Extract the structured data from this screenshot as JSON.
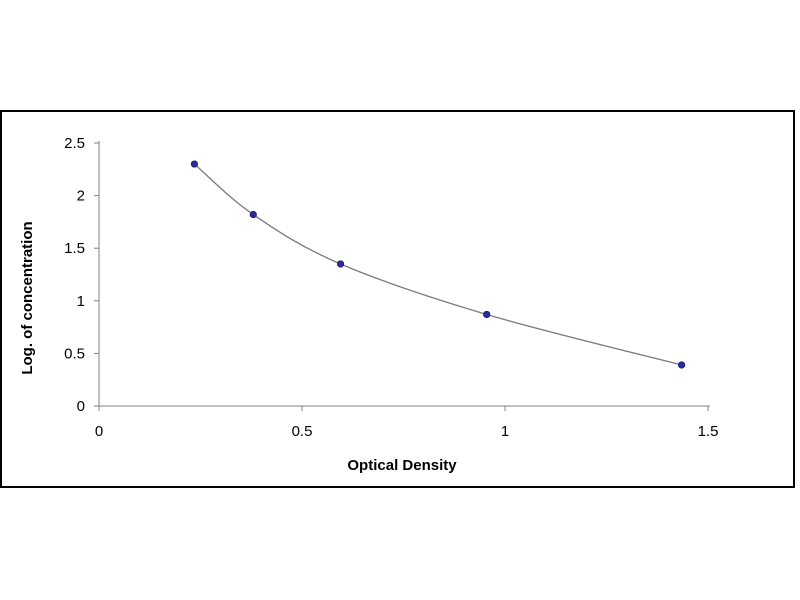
{
  "chart_data": {
    "type": "scatter",
    "title": "",
    "xlabel": "Optical Density",
    "ylabel": "Log. of concentration",
    "xlim": [
      0,
      1.5
    ],
    "ylim": [
      0,
      2.5
    ],
    "x_ticks": [
      "0",
      "0.5",
      "1",
      "1.5"
    ],
    "y_ticks": [
      "0",
      "0.5",
      "1",
      "1.5",
      "2",
      "2.5"
    ],
    "grid": false,
    "legend": "none",
    "fit_curve": "smooth",
    "series": [
      {
        "points": [
          {
            "x": 0.235,
            "y": 2.3
          },
          {
            "x": 0.38,
            "y": 1.82
          },
          {
            "x": 0.595,
            "y": 1.35
          },
          {
            "x": 0.955,
            "y": 0.87
          },
          {
            "x": 1.435,
            "y": 0.39
          }
        ],
        "marker_color": "#2b2b9a",
        "line_color": "#7a7a7a"
      }
    ]
  }
}
